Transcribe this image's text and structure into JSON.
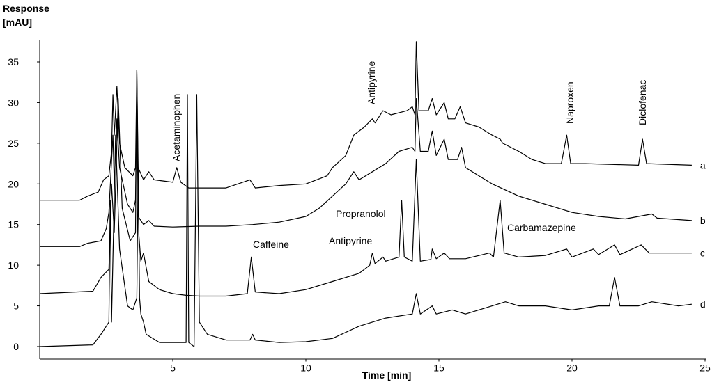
{
  "chart_data": {
    "type": "line",
    "y_label": [
      "Response",
      "[mAU]"
    ],
    "x_label": "Time [min]",
    "xlim": [
      0,
      25
    ],
    "xticks": [
      5,
      10,
      15,
      20,
      25
    ],
    "ylim": [
      -1.5,
      37.5
    ],
    "yticks": [
      0,
      5,
      10,
      15,
      20,
      25,
      30,
      35
    ],
    "series": [
      {
        "name": "a",
        "color": "#000000",
        "x": [
          0,
          1.5,
          1.8,
          2.2,
          2.4,
          2.6,
          2.7,
          2.75,
          2.8,
          2.9,
          3.0,
          3.2,
          3.5,
          3.6,
          3.65,
          3.7,
          3.9,
          4.1,
          4.3,
          5.0,
          5.15,
          5.3,
          5.6,
          7,
          7.9,
          8.1,
          9,
          10,
          10.8,
          11,
          11.5,
          11.8,
          12.2,
          12.5,
          12.6,
          12.9,
          13.2,
          13.8,
          14.0,
          14.1,
          14.15,
          14.25,
          14.6,
          14.75,
          14.9,
          15.2,
          15.35,
          15.6,
          15.8,
          16,
          16.5,
          17,
          17.3,
          17.4,
          18,
          18.5,
          19,
          19.6,
          19.8,
          19.95,
          20.5,
          22.5,
          22.65,
          22.8,
          24.5
        ],
        "values": [
          18,
          18,
          18.5,
          19,
          20.5,
          21,
          24,
          31,
          26,
          32,
          25,
          22,
          21,
          22,
          34,
          22,
          20.5,
          21.5,
          20.5,
          20.2,
          22,
          20.2,
          19.5,
          19.5,
          20.5,
          19.5,
          19.8,
          20,
          21,
          22,
          23.5,
          26,
          27,
          28,
          27.5,
          29,
          28.5,
          29,
          29.5,
          28.5,
          37.5,
          29,
          29,
          30.5,
          28.5,
          30,
          28,
          28,
          29.5,
          27.5,
          27,
          26,
          25.5,
          25,
          24,
          23,
          22.5,
          22.5,
          26,
          22.5,
          22.5,
          22.3,
          25.5,
          22.5,
          22.3
        ]
      },
      {
        "name": "b",
        "color": "#000000",
        "x": [
          0,
          1.5,
          1.8,
          2.3,
          2.5,
          2.6,
          2.75,
          2.8,
          2.9,
          3.0,
          3.3,
          3.5,
          3.6,
          3.65,
          3.7,
          3.9,
          4.1,
          4.3,
          5,
          6,
          7,
          8,
          9,
          10,
          10.5,
          11,
          11.5,
          11.8,
          12,
          12.5,
          13,
          13.5,
          14,
          14.1,
          14.15,
          14.3,
          14.6,
          14.75,
          14.9,
          15.2,
          15.35,
          15.7,
          15.85,
          16,
          16.5,
          17,
          18,
          19,
          20,
          21,
          22,
          23,
          23.2,
          24.5
        ],
        "values": [
          12.3,
          12.3,
          12.7,
          13,
          14.5,
          16.5,
          26,
          20,
          28,
          22,
          17.5,
          16.5,
          18,
          32,
          16,
          15,
          15.5,
          14.8,
          14.7,
          14.8,
          14.8,
          15,
          15.3,
          16,
          17,
          18.5,
          20,
          21.5,
          20.5,
          21.5,
          22.5,
          24,
          24.5,
          24,
          30.5,
          24,
          24,
          26.5,
          23.5,
          25.5,
          23,
          23,
          24.5,
          22,
          21,
          20,
          18.5,
          17.5,
          16.5,
          16,
          15.7,
          16.3,
          15.8,
          15.5
        ]
      },
      {
        "name": "c",
        "color": "#000000",
        "x": [
          0,
          2,
          2.3,
          2.6,
          2.7,
          2.8,
          2.95,
          3.1,
          3.4,
          3.6,
          3.65,
          3.72,
          3.8,
          3.9,
          4.1,
          4.5,
          5,
          5.5,
          6,
          7,
          7.8,
          7.95,
          8.1,
          9,
          10,
          11,
          12,
          12.4,
          12.5,
          12.6,
          12.9,
          13,
          13.5,
          13.6,
          13.7,
          14.0,
          14.15,
          14.3,
          14.7,
          14.75,
          14.9,
          15.2,
          15.4,
          16,
          16.9,
          17.05,
          17.3,
          17.45,
          18,
          19,
          19.8,
          20,
          20.8,
          21,
          21.6,
          21.8,
          22.6,
          22.9,
          24.5
        ],
        "values": [
          6.5,
          6.8,
          8.5,
          9.5,
          20,
          14,
          30.5,
          17,
          13,
          14,
          34,
          14,
          10.5,
          11.5,
          8,
          7,
          6.5,
          6.3,
          6.2,
          6.2,
          6.5,
          11,
          6.7,
          6.5,
          7,
          8,
          9,
          10,
          11.5,
          10.2,
          11,
          10.5,
          11,
          18,
          11,
          10.5,
          23,
          10.5,
          10.7,
          12,
          10.8,
          11.5,
          10.8,
          10.8,
          11.5,
          11,
          18,
          11.5,
          11,
          11.2,
          12,
          11,
          12,
          11.3,
          12.5,
          11.3,
          12.5,
          11.5,
          11.5
        ]
      },
      {
        "name": "d",
        "color": "#000000",
        "x": [
          0,
          2,
          2.3,
          2.6,
          2.65,
          2.7,
          2.85,
          3.0,
          3.3,
          3.5,
          3.65,
          3.7,
          3.75,
          3.8,
          3.9,
          4.0,
          4.5,
          5.5,
          5.55,
          5.6,
          5.8,
          5.9,
          6.0,
          6.3,
          7,
          7.9,
          8,
          8.1,
          9,
          10,
          11,
          12,
          13,
          14,
          14.15,
          14.3,
          14.75,
          14.9,
          15.5,
          16,
          17,
          17.5,
          18,
          19,
          20,
          21,
          21.4,
          21.6,
          21.8,
          22.5,
          23,
          24,
          24.5
        ],
        "values": [
          0,
          0.2,
          1.5,
          3,
          18,
          3,
          26,
          12,
          5,
          4.5,
          6,
          22,
          6,
          4,
          3,
          1.5,
          0.5,
          0.5,
          31,
          0.5,
          0,
          31,
          3,
          1.5,
          0.8,
          0.8,
          1.5,
          0.8,
          0.5,
          0.6,
          1,
          2.5,
          3.5,
          4,
          6.5,
          4,
          5,
          4,
          4.5,
          4,
          5,
          5.5,
          5,
          5,
          4.5,
          5,
          5,
          8.5,
          5,
          5,
          5.5,
          5,
          5.2
        ]
      }
    ],
    "annotations": [
      "Acetaminophen",
      "Antipyrine",
      "Naproxen",
      "Diclofenac",
      "Caffeine",
      "Propranolol",
      "Antipyrine",
      "Carbamazepine"
    ]
  }
}
